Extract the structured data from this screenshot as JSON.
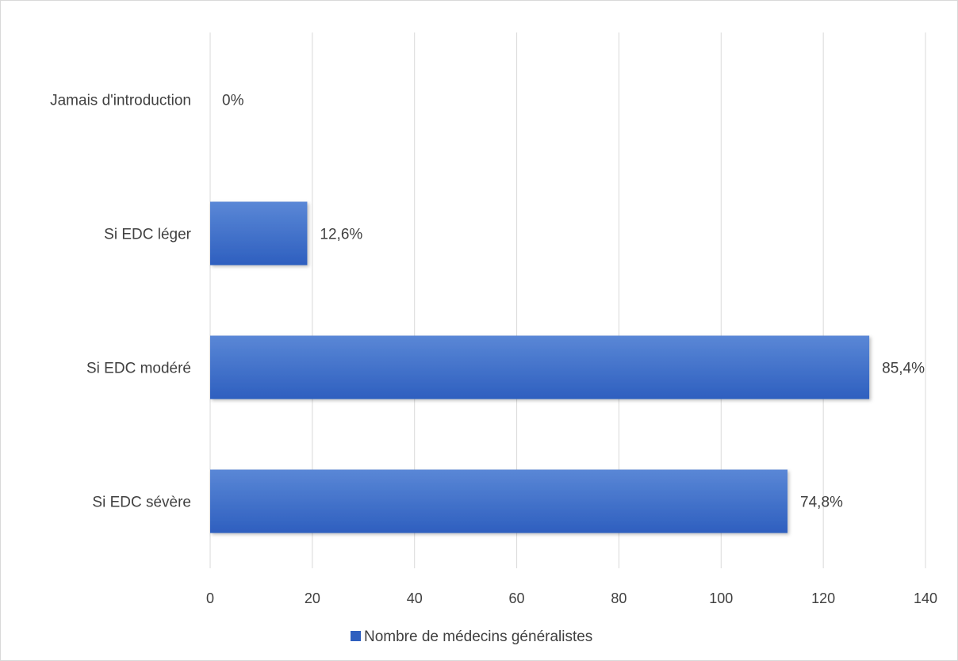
{
  "chart_data": {
    "type": "bar",
    "orientation": "horizontal",
    "categories": [
      "Jamais d'introduction",
      "Si EDC léger",
      "Si EDC modéré",
      "Si EDC sévère"
    ],
    "series": [
      {
        "name": "Nombre de médecins généralistes",
        "values": [
          0,
          19,
          129,
          113
        ],
        "data_labels": [
          "0%",
          "12,6%",
          "85,4%",
          "74,8%"
        ]
      }
    ],
    "xlim": [
      0,
      140
    ],
    "xticks": [
      0,
      20,
      40,
      60,
      80,
      100,
      120,
      140
    ],
    "tick_labels": [
      "0",
      "20",
      "40",
      "60",
      "80",
      "100",
      "120",
      "140"
    ],
    "grid": true,
    "legend": "bottom",
    "colors": {
      "bar_top": "#5a87d6",
      "bar_bottom": "#2e5fbf",
      "grid": "#d9d9d9",
      "text": "#404040"
    }
  }
}
